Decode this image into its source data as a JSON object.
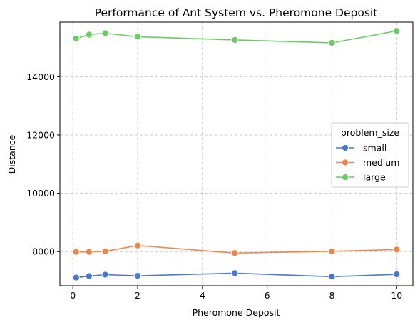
{
  "chart_data": {
    "type": "line",
    "title": "Performance of Ant System vs. Pheromone Deposit",
    "xlabel": "Pheromone Deposit",
    "ylabel": "Distance",
    "xlim": [
      -0.4,
      10.5
    ],
    "ylim": [
      6830,
      15870
    ],
    "xticks": [
      0,
      2,
      4,
      6,
      8,
      10
    ],
    "yticks": [
      8000,
      10000,
      12000,
      14000
    ],
    "x": [
      0.1,
      0.5,
      1,
      2,
      5,
      8,
      10
    ],
    "grid": true,
    "legend": {
      "title": "problem_size",
      "placement": "center-right"
    },
    "series": [
      {
        "name": "small",
        "color": "#4878d0",
        "values": [
          7110,
          7160,
          7210,
          7170,
          7260,
          7140,
          7220
        ]
      },
      {
        "name": "medium",
        "color": "#ee854a",
        "values": [
          7990,
          7990,
          8010,
          8210,
          7950,
          8010,
          8070
        ]
      },
      {
        "name": "large",
        "color": "#6acc64",
        "values": [
          15310,
          15440,
          15490,
          15370,
          15260,
          15160,
          15570
        ]
      }
    ]
  }
}
